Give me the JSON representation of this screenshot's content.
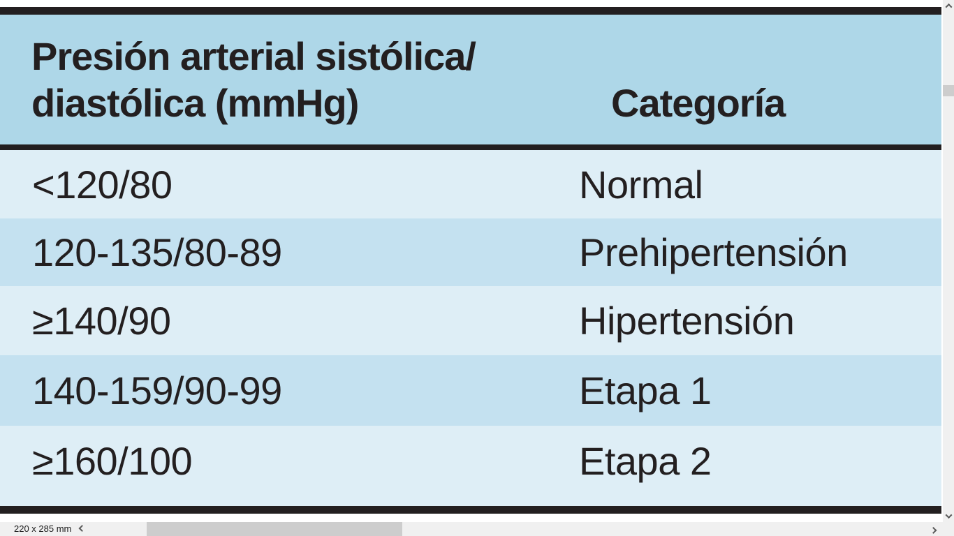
{
  "table": {
    "header": {
      "col1_line1": "Presión arterial sistólica/",
      "col1_line2": "diastólica (mmHg)",
      "col2": "Categoría"
    },
    "rows": [
      {
        "range": "<120/80",
        "category": "Normal"
      },
      {
        "range": "120-135/80-89",
        "category": "Prehipertensión"
      },
      {
        "range": "≥140/90",
        "category": "Hipertensión"
      },
      {
        "range": "140-159/90-99",
        "category": "Etapa 1"
      },
      {
        "range": "≥160/100",
        "category": "Etapa 2"
      }
    ]
  },
  "status_bar": {
    "page_size": "220 x 285 mm"
  },
  "icons": {
    "scroll_up": "chevron-up",
    "scroll_down": "chevron-down",
    "scroll_left": "chevron-left",
    "scroll_right": "chevron-right"
  },
  "colors": {
    "header_blue": "#aed7e8",
    "row_light": "#deeef6",
    "row_dark": "#c4e1f0",
    "border_black": "#231f20",
    "text_dark": "#231f20",
    "statusbar_bg": "#f0f0f0",
    "scrollbar_track": "#f0f0f0",
    "scrollbar_thumb": "#cdcdcd",
    "page_bg": "#ffffff"
  }
}
